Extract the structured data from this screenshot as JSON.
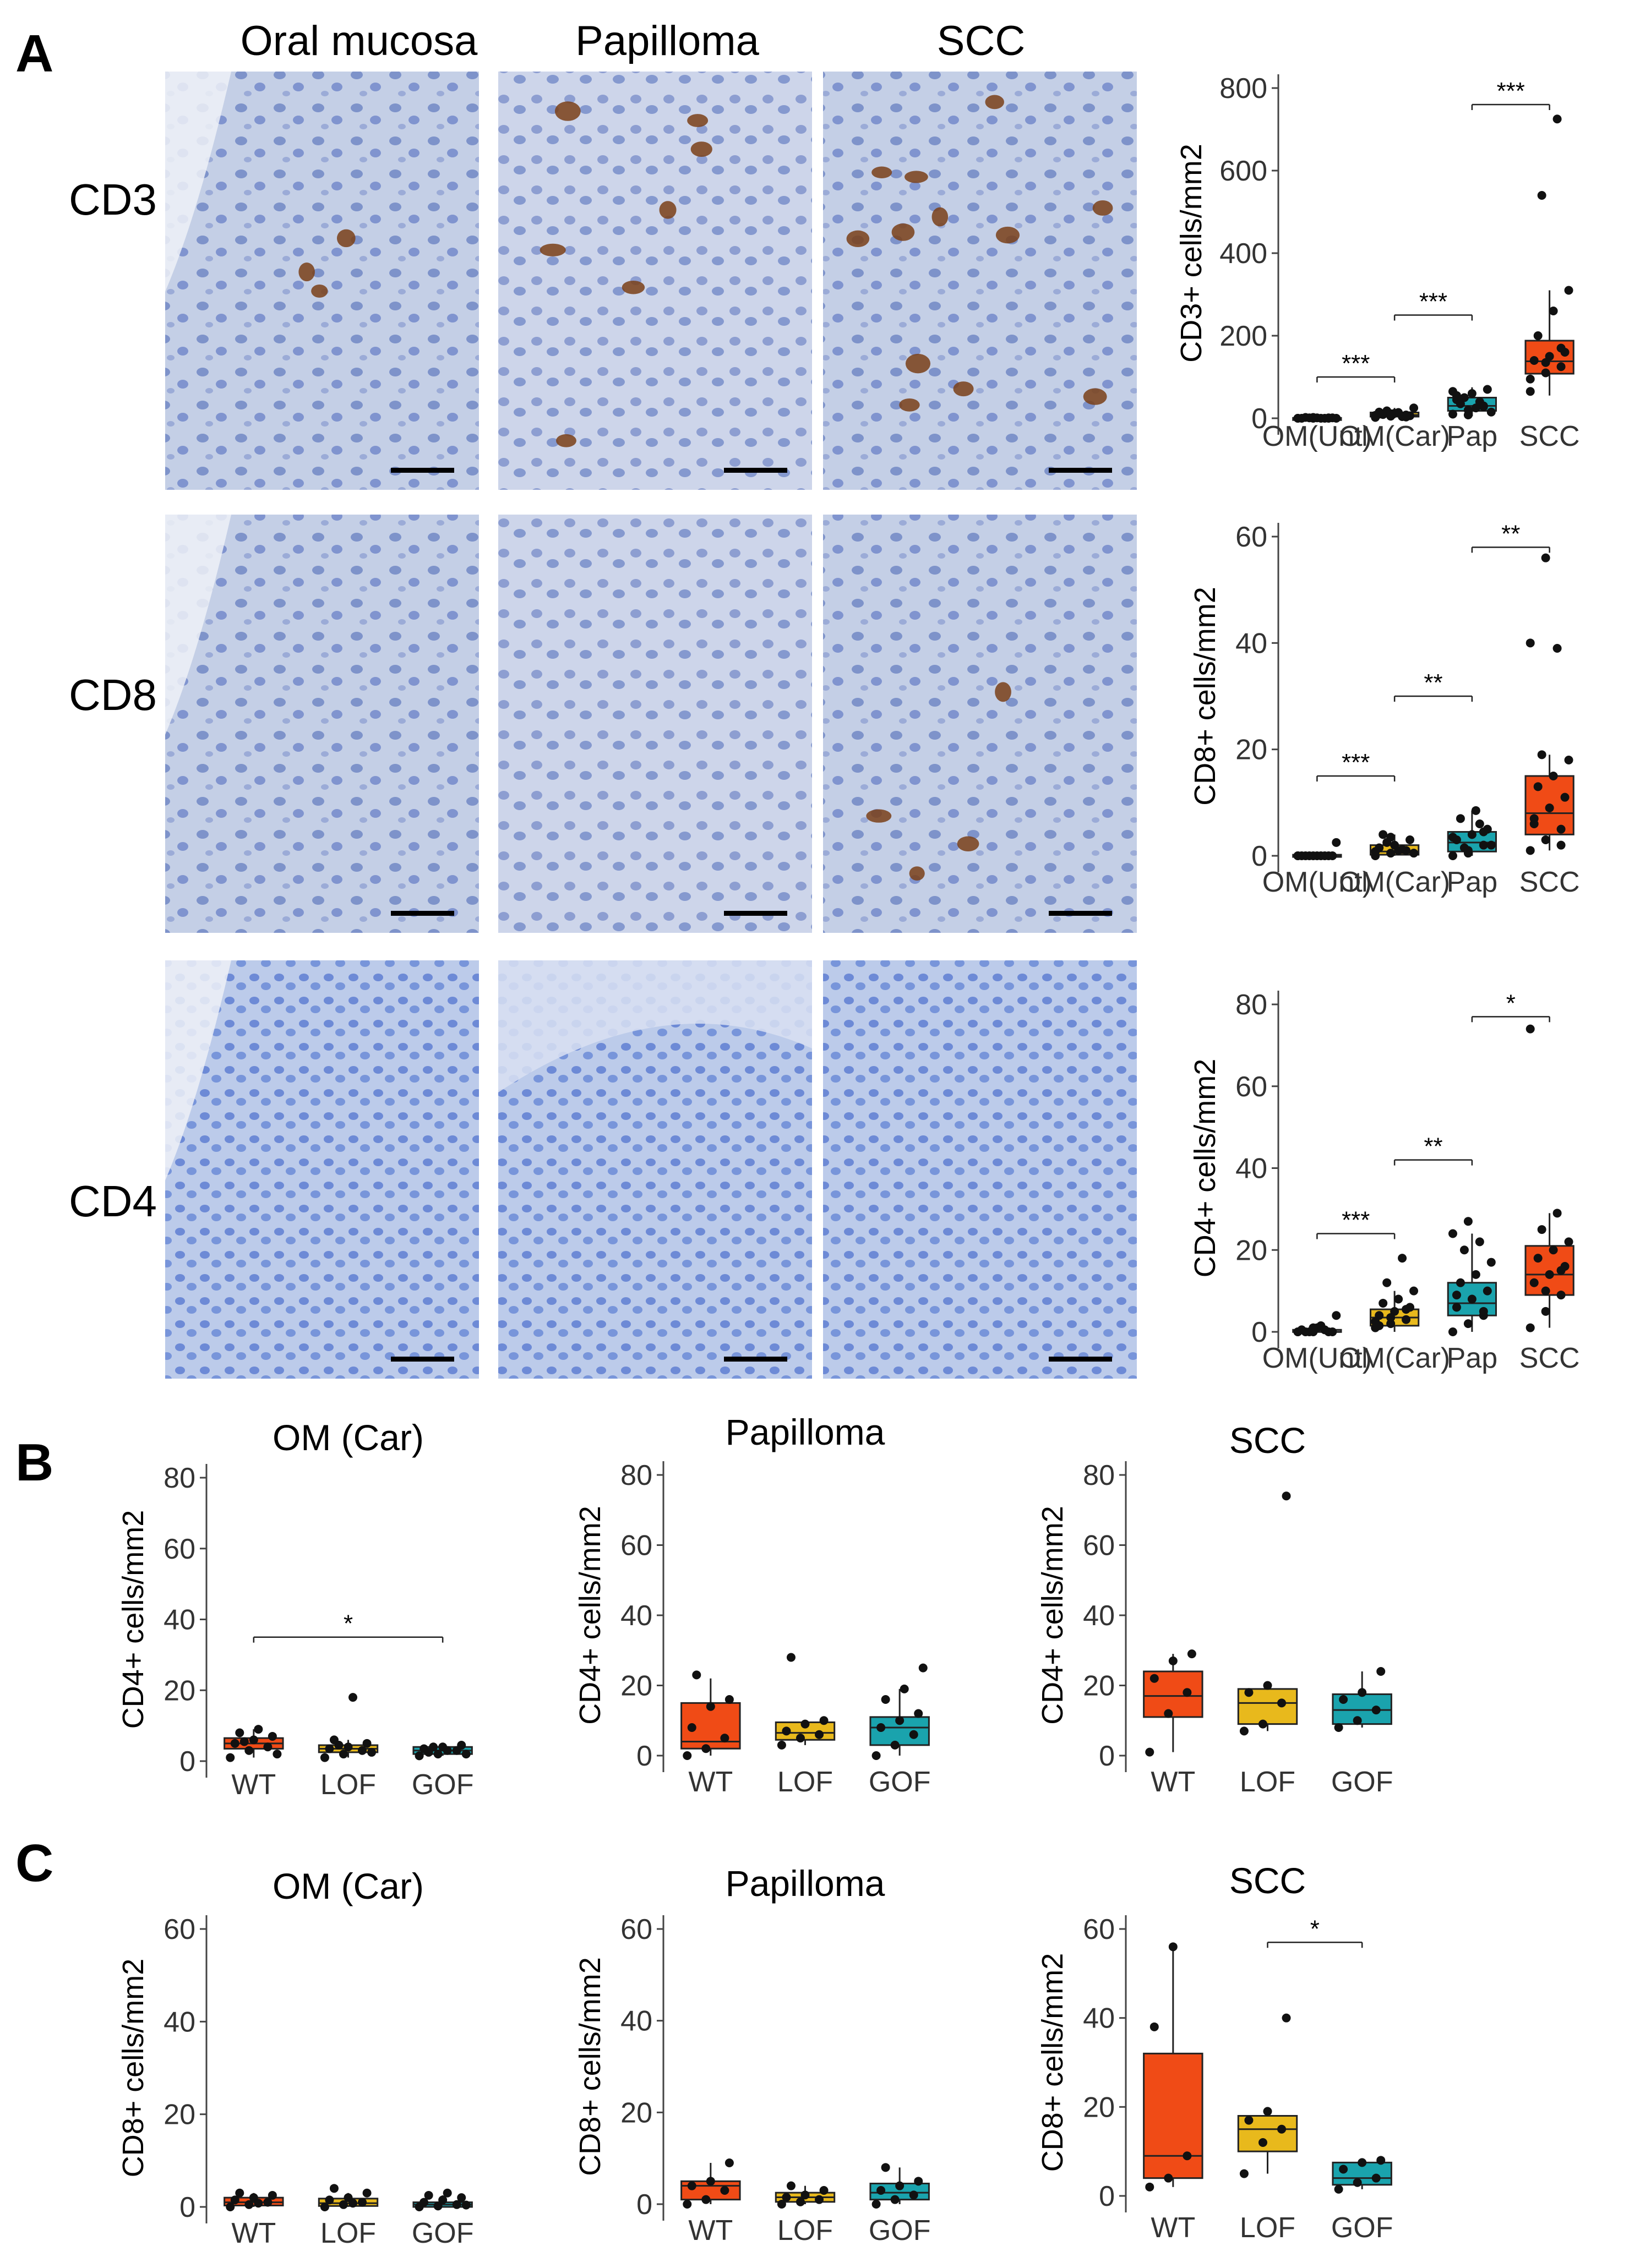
{
  "figure": {
    "panels": [
      {
        "letter": "A"
      },
      {
        "letter": "B"
      },
      {
        "letter": "C"
      }
    ],
    "micrograph_columns": [
      "Oral mucosa",
      "Papilloma",
      "SCC"
    ],
    "micrograph_rows": [
      "CD3",
      "CD8",
      "CD4"
    ],
    "colors": {
      "OM(Unt)": "#9e9e9e",
      "OM(Car)": "#e8b91c",
      "Pap": "#1aa3ad",
      "SCC": "#f04b16",
      "WT": "#f04b16",
      "LOF": "#e8b91c",
      "GOF": "#1aa3ad",
      "tissue_bg": "#c9d3e8",
      "nuclei": "#6f86c9",
      "stain": "#7a3f17"
    }
  },
  "chart_data": [
    {
      "id": "A_CD3",
      "type": "box",
      "title": "",
      "ylabel": "CD3+ cells/mm2",
      "xlabel": "",
      "categories": [
        "OM(Unt)",
        "OM(Car)",
        "Pap",
        "SCC"
      ],
      "ylim": [
        0,
        800
      ],
      "yticks": [
        0,
        200,
        400,
        600,
        800
      ],
      "boxes": [
        {
          "q1": 0,
          "median": 0,
          "q3": 1,
          "whisker_low": 0,
          "whisker_high": 2
        },
        {
          "q1": 4,
          "median": 8,
          "q3": 14,
          "whisker_low": 0,
          "whisker_high": 25
        },
        {
          "q1": 18,
          "median": 30,
          "q3": 50,
          "whisker_low": 5,
          "whisker_high": 75
        },
        {
          "q1": 108,
          "median": 138,
          "q3": 188,
          "whisker_low": 55,
          "whisker_high": 310
        }
      ],
      "points": [
        [
          0,
          0,
          0,
          0,
          1,
          1,
          2,
          0,
          0,
          1,
          0,
          0,
          2,
          1
        ],
        [
          2,
          5,
          8,
          10,
          12,
          6,
          9,
          14,
          25,
          18,
          4,
          7,
          11,
          3,
          15
        ],
        [
          10,
          20,
          30,
          45,
          60,
          70,
          35,
          25,
          15,
          50,
          40,
          65,
          8,
          28,
          55
        ],
        [
          65,
          110,
          125,
          140,
          150,
          160,
          200,
          260,
          310,
          540,
          725,
          95,
          135,
          170
        ]
      ],
      "significance": [
        {
          "from": 0,
          "to": 1,
          "label": "***",
          "y": 100
        },
        {
          "from": 1,
          "to": 2,
          "label": "***",
          "y": 250
        },
        {
          "from": 2,
          "to": 3,
          "label": "***",
          "y": 760
        }
      ]
    },
    {
      "id": "A_CD8",
      "type": "box",
      "title": "",
      "ylabel": "CD8+ cells/mm2",
      "xlabel": "",
      "categories": [
        "OM(Unt)",
        "OM(Car)",
        "Pap",
        "SCC"
      ],
      "ylim": [
        0,
        60
      ],
      "yticks": [
        0,
        20,
        40,
        60
      ],
      "boxes": [
        {
          "q1": 0,
          "median": 0,
          "q3": 0.2,
          "whisker_low": 0,
          "whisker_high": 0.5
        },
        {
          "q1": 0.2,
          "median": 0.8,
          "q3": 2,
          "whisker_low": 0,
          "whisker_high": 4
        },
        {
          "q1": 0.8,
          "median": 2.5,
          "q3": 4.5,
          "whisker_low": 0,
          "whisker_high": 8.5
        },
        {
          "q1": 4,
          "median": 8,
          "q3": 15,
          "whisker_low": 1,
          "whisker_high": 19
        }
      ],
      "points": [
        [
          0,
          0,
          0,
          0,
          0,
          0,
          0,
          0,
          2.5,
          0,
          0,
          0
        ],
        [
          0,
          0.5,
          1,
          1.5,
          2,
          3,
          4,
          1,
          0.5,
          2.5,
          1.2,
          0.8,
          3.5
        ],
        [
          0,
          1,
          2,
          3,
          4,
          5,
          7,
          8.5,
          2,
          1.5,
          6,
          3.5,
          0.5,
          4.5
        ],
        [
          1,
          3,
          5,
          7,
          9,
          11,
          13,
          15,
          18,
          19,
          39,
          40,
          56,
          2,
          6
        ]
      ],
      "significance": [
        {
          "from": 0,
          "to": 1,
          "label": "***",
          "y": 15
        },
        {
          "from": 1,
          "to": 2,
          "label": "**",
          "y": 30
        },
        {
          "from": 2,
          "to": 3,
          "label": "**",
          "y": 58
        }
      ]
    },
    {
      "id": "A_CD4",
      "type": "box",
      "title": "",
      "ylabel": "CD4+ cells/mm2",
      "xlabel": "",
      "categories": [
        "OM(Unt)",
        "OM(Car)",
        "Pap",
        "SCC"
      ],
      "ylim": [
        0,
        80
      ],
      "yticks": [
        0,
        20,
        40,
        60,
        80
      ],
      "boxes": [
        {
          "q1": 0,
          "median": 0,
          "q3": 0.5,
          "whisker_low": 0,
          "whisker_high": 1.5
        },
        {
          "q1": 1.5,
          "median": 3.5,
          "q3": 5.5,
          "whisker_low": 0,
          "whisker_high": 10
        },
        {
          "q1": 4,
          "median": 7,
          "q3": 12,
          "whisker_low": 0,
          "whisker_high": 24
        },
        {
          "q1": 9,
          "median": 14,
          "q3": 21,
          "whisker_low": 1,
          "whisker_high": 29
        }
      ],
      "points": [
        [
          0,
          0,
          0,
          0.5,
          1,
          0,
          0,
          1.5,
          4,
          0,
          0.5,
          0,
          1
        ],
        [
          1,
          2,
          3,
          4,
          5,
          6,
          7,
          8,
          10,
          12,
          18,
          2.5,
          3.5,
          5.5,
          1.5
        ],
        [
          0,
          2,
          4,
          6,
          8,
          10,
          12,
          14,
          17,
          20,
          22,
          24,
          27,
          5,
          9
        ],
        [
          1,
          5,
          9,
          12,
          14,
          16,
          18,
          20,
          22,
          25,
          29,
          74,
          10,
          15
        ]
      ],
      "significance": [
        {
          "from": 0,
          "to": 1,
          "label": "***",
          "y": 24
        },
        {
          "from": 1,
          "to": 2,
          "label": "**",
          "y": 42
        },
        {
          "from": 2,
          "to": 3,
          "label": "*",
          "y": 77
        }
      ]
    },
    {
      "id": "B_OM",
      "type": "box",
      "title": "OM (Car)",
      "ylabel": "CD4+ cells/mm2",
      "xlabel": "",
      "categories": [
        "WT",
        "LOF",
        "GOF"
      ],
      "ylim": [
        0,
        80
      ],
      "yticks": [
        0,
        20,
        40,
        60,
        80
      ],
      "boxes": [
        {
          "q1": 3.5,
          "median": 5,
          "q3": 6.5,
          "whisker_low": 1,
          "whisker_high": 9
        },
        {
          "q1": 2.5,
          "median": 3.5,
          "q3": 4.5,
          "whisker_low": 1,
          "whisker_high": 6
        },
        {
          "q1": 2,
          "median": 3,
          "q3": 4,
          "whisker_low": 1.5,
          "whisker_high": 4.5
        }
      ],
      "points": [
        [
          1,
          3,
          4,
          5,
          6,
          7,
          8,
          9,
          2,
          5.5
        ],
        [
          1,
          2,
          3,
          3.5,
          4,
          5,
          6,
          18,
          2.5,
          4.5
        ],
        [
          1.5,
          2,
          3,
          3.5,
          4,
          4.5,
          2.5,
          3,
          2,
          4
        ]
      ],
      "significance": [
        {
          "from": 0,
          "to": 2,
          "label": "*",
          "y": 35
        }
      ]
    },
    {
      "id": "B_Pap",
      "type": "box",
      "title": "Papilloma",
      "ylabel": "CD4+ cells/mm2",
      "xlabel": "",
      "categories": [
        "WT",
        "LOF",
        "GOF"
      ],
      "ylim": [
        0,
        80
      ],
      "yticks": [
        0,
        20,
        40,
        60,
        80
      ],
      "boxes": [
        {
          "q1": 2,
          "median": 4,
          "q3": 15,
          "whisker_low": 0,
          "whisker_high": 22
        },
        {
          "q1": 4.5,
          "median": 6.5,
          "q3": 9.5,
          "whisker_low": 3,
          "whisker_high": 10
        },
        {
          "q1": 3,
          "median": 8,
          "q3": 11,
          "whisker_low": 0,
          "whisker_high": 19
        }
      ],
      "points": [
        [
          0,
          2,
          5,
          8,
          14,
          16,
          23
        ],
        [
          3,
          5,
          6,
          7,
          9,
          10,
          28
        ],
        [
          0,
          3,
          6,
          8,
          10,
          12,
          16,
          19,
          25
        ]
      ],
      "significance": []
    },
    {
      "id": "B_SCC",
      "type": "box",
      "title": "SCC",
      "ylabel": "CD4+ cells/mm2",
      "xlabel": "",
      "categories": [
        "WT",
        "LOF",
        "GOF"
      ],
      "ylim": [
        0,
        80
      ],
      "yticks": [
        0,
        20,
        40,
        60,
        80
      ],
      "boxes": [
        {
          "q1": 11,
          "median": 17,
          "q3": 24,
          "whisker_low": 1,
          "whisker_high": 29
        },
        {
          "q1": 9,
          "median": 15,
          "q3": 19,
          "whisker_low": 7,
          "whisker_high": 20
        },
        {
          "q1": 9,
          "median": 13,
          "q3": 17.5,
          "whisker_low": 8,
          "whisker_high": 24
        }
      ],
      "points": [
        [
          1,
          12,
          18,
          22,
          27,
          29
        ],
        [
          7,
          9,
          15,
          18,
          20,
          74
        ],
        [
          8,
          10,
          13,
          16,
          18,
          24
        ]
      ],
      "significance": []
    },
    {
      "id": "C_OM",
      "type": "box",
      "title": "OM (Car)",
      "ylabel": "CD8+ cells/mm2",
      "xlabel": "",
      "categories": [
        "WT",
        "LOF",
        "GOF"
      ],
      "ylim": [
        0,
        60
      ],
      "yticks": [
        0,
        20,
        40,
        60
      ],
      "boxes": [
        {
          "q1": 0.3,
          "median": 1,
          "q3": 2,
          "whisker_low": 0,
          "whisker_high": 3
        },
        {
          "q1": 0.2,
          "median": 0.8,
          "q3": 1.8,
          "whisker_low": 0,
          "whisker_high": 3
        },
        {
          "q1": 0,
          "median": 0.5,
          "q3": 1,
          "whisker_low": 0,
          "whisker_high": 2.5
        }
      ],
      "points": [
        [
          0,
          0.5,
          1,
          1.5,
          2,
          2.5,
          3,
          0.8
        ],
        [
          0,
          0.5,
          1,
          1.5,
          2,
          3,
          4,
          0.8
        ],
        [
          0,
          0.2,
          0.5,
          1,
          1.5,
          2,
          2.5,
          3,
          0.4
        ]
      ],
      "significance": []
    },
    {
      "id": "C_Pap",
      "type": "box",
      "title": "Papilloma",
      "ylabel": "CD8+ cells/mm2",
      "xlabel": "",
      "categories": [
        "WT",
        "LOF",
        "GOF"
      ],
      "ylim": [
        0,
        60
      ],
      "yticks": [
        0,
        20,
        40,
        60
      ],
      "boxes": [
        {
          "q1": 1,
          "median": 4,
          "q3": 5,
          "whisker_low": 0,
          "whisker_high": 9
        },
        {
          "q1": 0.5,
          "median": 1.5,
          "q3": 2.5,
          "whisker_low": 0,
          "whisker_high": 4
        },
        {
          "q1": 1,
          "median": 2.5,
          "q3": 4.5,
          "whisker_low": 0,
          "whisker_high": 8
        }
      ],
      "points": [
        [
          0,
          1,
          3,
          4,
          5,
          9
        ],
        [
          0,
          0.5,
          1,
          1.5,
          2,
          3,
          4
        ],
        [
          0,
          1,
          2,
          3,
          4,
          5,
          8
        ]
      ],
      "significance": []
    },
    {
      "id": "C_SCC",
      "type": "box",
      "title": "SCC",
      "ylabel": "CD8+ cells/mm2",
      "xlabel": "",
      "categories": [
        "WT",
        "LOF",
        "GOF"
      ],
      "ylim": [
        0,
        60
      ],
      "yticks": [
        0,
        20,
        40,
        60
      ],
      "boxes": [
        {
          "q1": 4,
          "median": 9,
          "q3": 32,
          "whisker_low": 2,
          "whisker_high": 56
        },
        {
          "q1": 10,
          "median": 15,
          "q3": 18,
          "whisker_low": 5,
          "whisker_high": 19
        },
        {
          "q1": 2.5,
          "median": 4,
          "q3": 7.5,
          "whisker_low": 1.5,
          "whisker_high": 8
        }
      ],
      "points": [
        [
          2,
          4,
          9,
          38,
          56
        ],
        [
          5,
          12,
          15,
          17,
          19,
          40
        ],
        [
          1.5,
          3,
          4,
          6,
          7.5,
          8
        ]
      ],
      "significance": [
        {
          "from": 1,
          "to": 2,
          "label": "*",
          "y": 57
        }
      ]
    }
  ]
}
